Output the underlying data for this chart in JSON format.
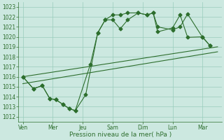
{
  "xlabel": "Pression niveau de la mer( hPa )",
  "ylim": [
    1011.5,
    1023.5
  ],
  "yticks": [
    1012,
    1013,
    1014,
    1015,
    1016,
    1017,
    1018,
    1019,
    1020,
    1021,
    1022,
    1023
  ],
  "xtick_labels": [
    "Ven",
    "Mer",
    "Jeu",
    "Sam",
    "Dim",
    "Lun",
    "Mar"
  ],
  "xtick_positions": [
    0,
    2,
    4,
    6,
    8,
    10,
    12
  ],
  "xlim": [
    -0.3,
    13.3
  ],
  "background_color": "#cce8e0",
  "grid_color": "#99ccbb",
  "line_color": "#2d6e2d",
  "line1_x": [
    0.0,
    0.7,
    1.3,
    1.8,
    2.2,
    2.7,
    3.1,
    3.5,
    4.2,
    5.0,
    5.5,
    6.0,
    6.5,
    7.0,
    7.7,
    8.3,
    8.7,
    9.0,
    10.0,
    10.5,
    11.0,
    12.0,
    12.5
  ],
  "line1_y": [
    1016.0,
    1014.8,
    1015.1,
    1013.8,
    1013.7,
    1013.2,
    1012.8,
    1012.6,
    1014.2,
    1020.4,
    1021.7,
    1021.7,
    1020.8,
    1021.7,
    1022.4,
    1022.2,
    1022.4,
    1021.0,
    1020.7,
    1021.0,
    1022.3,
    1019.95,
    1019.1
  ],
  "line2_x": [
    0.0,
    0.7,
    1.3,
    1.8,
    2.2,
    2.7,
    3.1,
    3.5,
    4.5,
    5.0,
    5.5,
    6.0,
    6.5,
    7.0,
    7.7,
    8.3,
    8.7,
    9.0,
    10.0,
    10.5,
    11.0,
    12.0,
    12.5
  ],
  "line2_y": [
    1016.0,
    1014.8,
    1015.1,
    1013.8,
    1013.7,
    1013.2,
    1012.8,
    1012.6,
    1017.2,
    1020.4,
    1021.7,
    1022.2,
    1022.2,
    1022.4,
    1022.4,
    1022.2,
    1022.4,
    1020.5,
    1020.9,
    1022.2,
    1019.95,
    1020.0,
    1019.1
  ],
  "trend1_x": [
    0.0,
    13.0
  ],
  "trend1_y": [
    1016.0,
    1019.0
  ],
  "trend2_x": [
    0.0,
    13.0
  ],
  "trend2_y": [
    1015.3,
    1018.5
  ],
  "marker_size": 2.5,
  "line_width": 0.8,
  "tick_fontsize": 5.5,
  "xlabel_fontsize": 6.5
}
